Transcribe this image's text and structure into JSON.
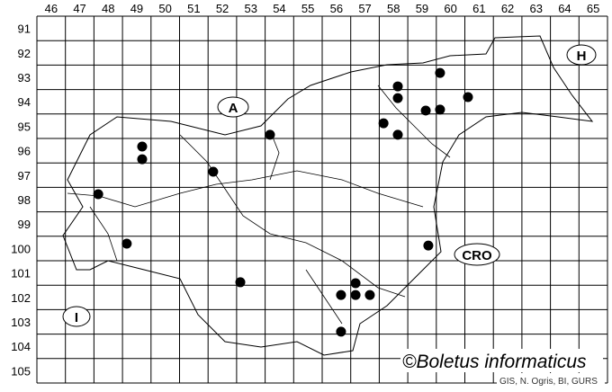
{
  "map": {
    "columns": [
      "46",
      "47",
      "48",
      "49",
      "50",
      "51",
      "52",
      "53",
      "54",
      "55",
      "56",
      "57",
      "58",
      "59",
      "60",
      "61",
      "62",
      "63",
      "64",
      "65"
    ],
    "rows": [
      "91",
      "92",
      "93",
      "94",
      "95",
      "96",
      "97",
      "98",
      "99",
      "100",
      "101",
      "102",
      "103",
      "104",
      "105"
    ],
    "grid_x_range": [
      46,
      66
    ],
    "grid_y_range": [
      91,
      106
    ],
    "dot_color": "#000000",
    "records": [
      {
        "x": 60.13,
        "y": 93.32
      },
      {
        "x": 58.65,
        "y": 93.87
      },
      {
        "x": 58.65,
        "y": 94.35
      },
      {
        "x": 61.11,
        "y": 94.31
      },
      {
        "x": 59.63,
        "y": 94.86
      },
      {
        "x": 60.13,
        "y": 94.82
      },
      {
        "x": 58.15,
        "y": 95.38
      },
      {
        "x": 58.65,
        "y": 95.85
      },
      {
        "x": 54.17,
        "y": 95.85
      },
      {
        "x": 49.69,
        "y": 96.33
      },
      {
        "x": 49.69,
        "y": 96.85
      },
      {
        "x": 52.18,
        "y": 97.36
      },
      {
        "x": 48.15,
        "y": 98.28
      },
      {
        "x": 49.15,
        "y": 100.3
      },
      {
        "x": 59.72,
        "y": 100.38
      },
      {
        "x": 53.13,
        "y": 101.88
      },
      {
        "x": 57.17,
        "y": 101.92
      },
      {
        "x": 56.66,
        "y": 102.4
      },
      {
        "x": 57.17,
        "y": 102.4
      },
      {
        "x": 57.67,
        "y": 102.4
      },
      {
        "x": 56.66,
        "y": 103.9
      }
    ],
    "country_labels": {
      "austria": "A",
      "hungary": "H",
      "croatia": "CRO",
      "italy": "I"
    }
  },
  "copyright": "©Boletus informaticus",
  "credits": "GIS, N. Ogris, BI, GURS"
}
